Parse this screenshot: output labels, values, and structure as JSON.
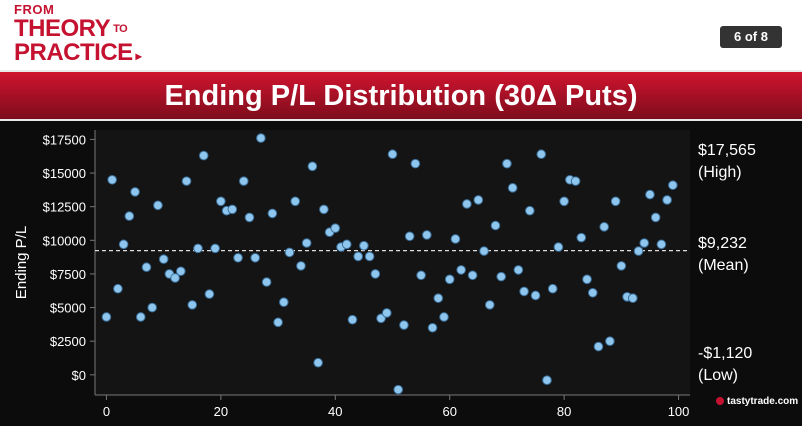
{
  "header": {
    "logo_line1": "FROM",
    "logo_line2": "THEORY",
    "logo_to": "TO",
    "logo_line3": "PRACTICE",
    "slide_counter": "6 of 8"
  },
  "title": "Ending P/L Distribution (30Δ Puts)",
  "annotations": {
    "high_value": "$17,565",
    "high_label": "(High)",
    "mean_value": "$9,232",
    "mean_label": "(Mean)",
    "low_value": "-$1,120",
    "low_label": "(Low)"
  },
  "brand": "tastytrade.com",
  "colors": {
    "accent": "#c41230",
    "point": "#8fc6ee",
    "background": "#0c0c0c"
  },
  "chart_data": {
    "type": "scatter",
    "title": "",
    "ylabel": "Ending P/L",
    "xlabel": "",
    "xlim": [
      -2,
      102
    ],
    "ylim": [
      -1500,
      18200
    ],
    "xticks": [
      0,
      20,
      40,
      60,
      80,
      100
    ],
    "yticks": [
      0,
      2500,
      5000,
      7500,
      10000,
      12500,
      15000,
      17500
    ],
    "ytick_labels": [
      "$0",
      "$2500",
      "$5000",
      "$7500",
      "$10000",
      "$12500",
      "$15000",
      "$17500"
    ],
    "mean_line": 9232,
    "x": [
      0,
      1,
      2,
      3,
      4,
      5,
      6,
      7,
      8,
      9,
      10,
      11,
      12,
      13,
      14,
      15,
      16,
      17,
      18,
      19,
      20,
      21,
      22,
      23,
      24,
      25,
      26,
      27,
      28,
      29,
      30,
      31,
      32,
      33,
      34,
      35,
      36,
      37,
      38,
      39,
      40,
      41,
      42,
      43,
      44,
      45,
      46,
      47,
      48,
      49,
      50,
      51,
      52,
      53,
      54,
      55,
      56,
      57,
      58,
      59,
      60,
      61,
      62,
      63,
      64,
      65,
      66,
      67,
      68,
      69,
      70,
      71,
      72,
      73,
      74,
      75,
      76,
      77,
      78,
      79,
      80,
      81,
      82,
      83,
      84,
      85,
      86,
      87,
      88,
      89,
      90,
      91,
      92,
      93,
      94,
      95,
      96,
      97,
      98,
      99
    ],
    "y": [
      4300,
      14500,
      6400,
      9700,
      11800,
      13600,
      4300,
      8000,
      5000,
      12600,
      8600,
      7500,
      7200,
      7700,
      14400,
      5200,
      9400,
      16300,
      6000,
      9400,
      12900,
      12200,
      12300,
      8700,
      14400,
      11700,
      8700,
      17600,
      6900,
      12000,
      3900,
      5400,
      9100,
      12900,
      8100,
      9800,
      15500,
      900,
      12300,
      10600,
      10900,
      9500,
      9700,
      4100,
      8800,
      9600,
      8800,
      7500,
      4200,
      4600,
      16400,
      -1100,
      3700,
      10300,
      15700,
      7400,
      10400,
      3500,
      5700,
      4300,
      7100,
      10100,
      7800,
      12700,
      7400,
      13000,
      9200,
      5200,
      11100,
      7300,
      15700,
      13900,
      7800,
      6200,
      12200,
      5900,
      16400,
      -400,
      6400,
      9500,
      12900,
      14500,
      14400,
      10200,
      7100,
      6100,
      2100,
      11000,
      2500,
      12900,
      8100,
      5800,
      5700,
      9200,
      9800,
      13400,
      11700,
      9700,
      13000,
      14100
    ]
  }
}
